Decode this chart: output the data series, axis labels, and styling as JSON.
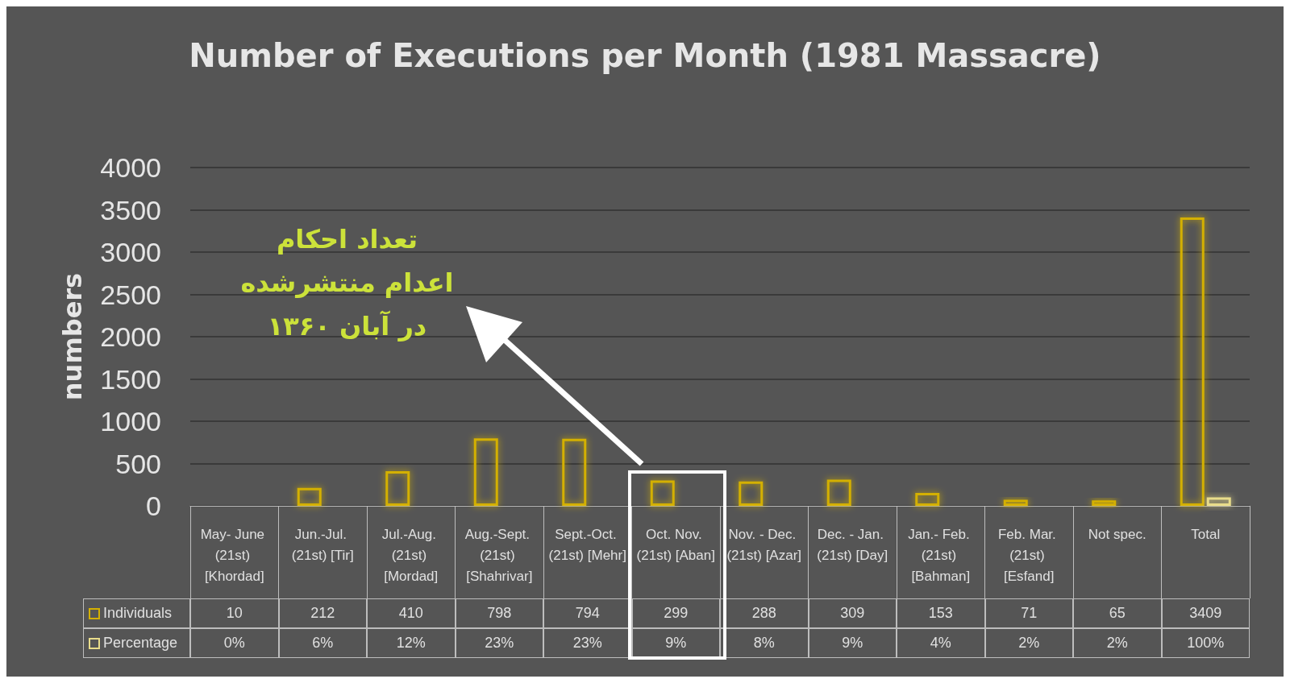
{
  "chart_data": {
    "type": "bar",
    "title": "Number of Executions per Month (1981 Massacre)",
    "ylabel": "numbers",
    "categories": [
      "May- June (21st) [Khordad]",
      "Jun.-Jul. (21st) [Tir]",
      "Jul.-Aug. (21st) [Mordad]",
      "Aug.-Sept. (21st) [Shahrivar]",
      "Sept.-Oct. (21st) [Mehr]",
      "Oct. Nov. (21st) [Aban]",
      "Nov. - Dec. (21st) [Azar]",
      "Dec. - Jan. (21st) [Day]",
      "Jan.- Feb. (21st) [Bahman]",
      "Feb. Mar. (21st) [Esfand]",
      "Not spec.",
      "Total"
    ],
    "series": [
      {
        "name": "Individuals",
        "color": "#d4b000",
        "values": [
          10,
          212,
          410,
          798,
          794,
          299,
          288,
          309,
          153,
          71,
          65,
          3409
        ],
        "value_labels": [
          "10",
          "212",
          "410",
          "798",
          "794",
          "299",
          "288",
          "309",
          "153",
          "71",
          "65",
          "3409"
        ]
      },
      {
        "name": "Percentage",
        "color": "#e8dc8a",
        "values": [
          0,
          6,
          12,
          23,
          23,
          9,
          8,
          9,
          4,
          2,
          2,
          100
        ],
        "value_labels": [
          "0%",
          "6%",
          "12%",
          "23%",
          "23%",
          "9%",
          "8%",
          "9%",
          "4%",
          "2%",
          "2%",
          "100%"
        ]
      }
    ],
    "ylim": [
      0,
      4000
    ],
    "yticks": [
      0,
      500,
      1000,
      1500,
      2000,
      2500,
      3000,
      3500,
      4000
    ],
    "grid": "y",
    "legend": "bottom",
    "annotations": [
      "تعداد احکام اعدام منتشرشده در آبان ۱۳۶۰"
    ]
  }
}
